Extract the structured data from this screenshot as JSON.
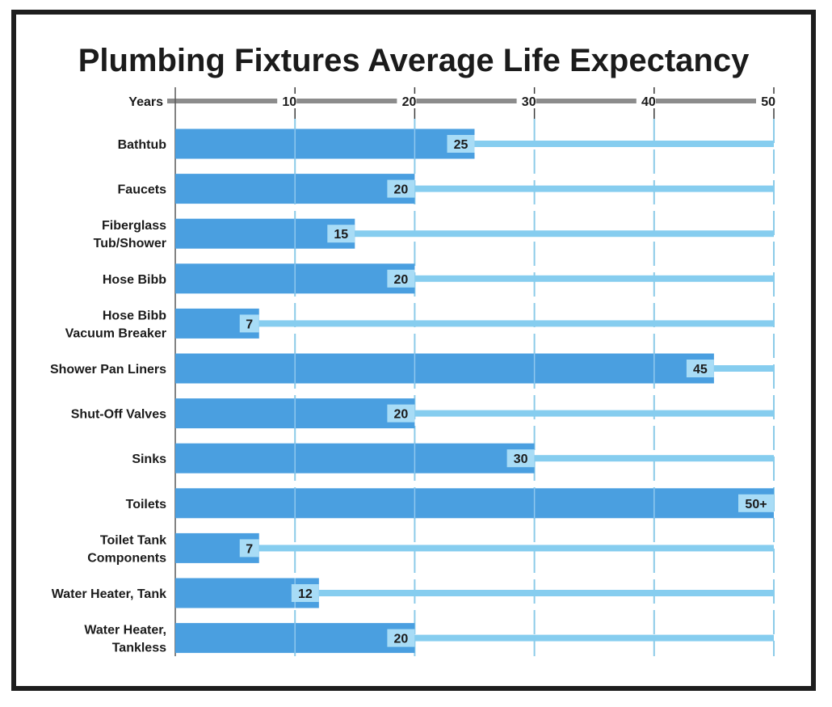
{
  "chart_data": {
    "type": "bar",
    "orientation": "horizontal",
    "title": "Plumbing Fixtures Average Life Expectancy",
    "xlabel": "Years",
    "ylabel": "",
    "xlim": [
      0,
      50
    ],
    "ticks": [
      10,
      20,
      30,
      40,
      50
    ],
    "tick_labels": [
      "10",
      "20",
      "30",
      "40",
      "50"
    ],
    "grid": true,
    "categories": [
      [
        "Bathtub"
      ],
      [
        "Faucets"
      ],
      [
        "Fiberglass",
        "Tub/Shower"
      ],
      [
        "Hose Bibb"
      ],
      [
        "Hose Bibb",
        "Vacuum Breaker"
      ],
      [
        "Shower Pan Liners"
      ],
      [
        "Shut-Off Valves"
      ],
      [
        "Sinks"
      ],
      [
        "Toilets"
      ],
      [
        "Toilet Tank",
        "Components"
      ],
      [
        "Water Heater, Tank"
      ],
      [
        "Water Heater,",
        "Tankless"
      ]
    ],
    "values": [
      25,
      20,
      15,
      20,
      7,
      45,
      20,
      30,
      50,
      7,
      12,
      20
    ],
    "value_labels": [
      "25",
      "20",
      "15",
      "20",
      "7",
      "45",
      "20",
      "30",
      "50+",
      "7",
      "12",
      "20"
    ],
    "colors": {
      "bar": "#4a9fe0",
      "track": "#86cdef",
      "label_box": "#a8dcf6",
      "axis": "#8c8c8c",
      "grid": "#8ccbe8",
      "text": "#1b1b1b"
    }
  }
}
